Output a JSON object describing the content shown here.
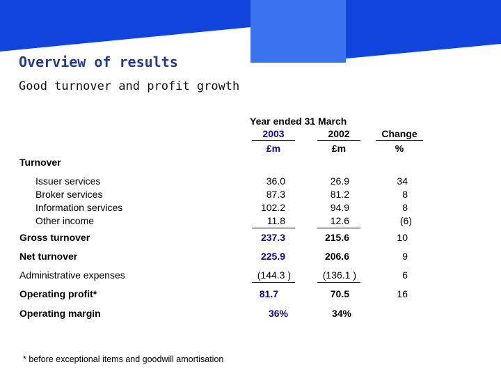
{
  "title": "Overview of results",
  "subtitle": "Good turnover and profit growth",
  "colors": {
    "header_blue": "#1144dd",
    "header_light": "#3a73ee",
    "title_blue": "#1f3a9c",
    "value_blue": "#0a0a9a"
  },
  "table": {
    "period_header": "Year ended 31 March",
    "col_2003": "2003",
    "col_2002": "2002",
    "col_change": "Change",
    "unit_2003": "£m",
    "unit_2002": "£m",
    "unit_change": "%",
    "turnover_label": "Turnover",
    "issuer": {
      "label": "Issuer services",
      "v2003": "36.0",
      "v2002": "26.9",
      "change": "34"
    },
    "broker": {
      "label": "Broker services",
      "v2003": "87.3",
      "v2002": "81.2",
      "change": "8"
    },
    "info": {
      "label": "Information services",
      "v2003": "102.2",
      "v2002": "94.9",
      "change": "8"
    },
    "other": {
      "label": "Other income",
      "v2003": "11.8",
      "v2002": "12.6",
      "change": "(6)"
    },
    "gross": {
      "label": "Gross turnover",
      "v2003": "237.3",
      "v2002": "215.6",
      "change": "10"
    },
    "net": {
      "label": "Net turnover",
      "v2003": "225.9",
      "v2002": "206.6",
      "change": "9"
    },
    "admin": {
      "label": "Administrative expenses",
      "v2003": "(144.3 )",
      "v2002": "(136.1 )",
      "change": "6"
    },
    "opprofit": {
      "label": "Operating profit*",
      "v2003": "81.7",
      "v2002": "70.5",
      "change": "16"
    },
    "margin": {
      "label": "Operating margin",
      "v2003": "36%",
      "v2002": "34%"
    }
  },
  "footnote": "* before exceptional items and goodwill amortisation"
}
